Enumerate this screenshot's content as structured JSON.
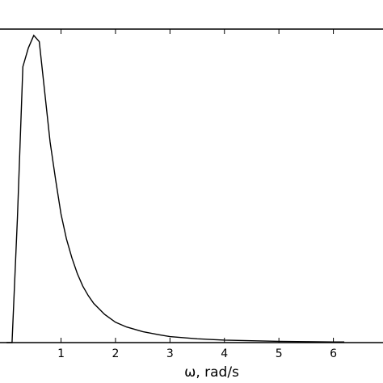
{
  "chart_data": {
    "type": "line",
    "title": "",
    "xlabel": "ω, rad/s",
    "ylabel": "",
    "xlim": [
      -0.15,
      7.0
    ],
    "ylim": [
      0,
      1.0
    ],
    "grid": false,
    "x_ticks": [
      1,
      2,
      3,
      4,
      5,
      6
    ],
    "x_tick_labels": [
      "1",
      "2",
      "3",
      "4",
      "5",
      "6"
    ],
    "series": [
      {
        "x": [
          0.0,
          0.1,
          0.2,
          0.3,
          0.4,
          0.5,
          0.6,
          0.7,
          0.8,
          0.9,
          1.0,
          1.1,
          1.2,
          1.3,
          1.4,
          1.5,
          1.6,
          1.8,
          2.0,
          2.2,
          2.5,
          2.8,
          3.0,
          3.5,
          4.0,
          4.5,
          5.0,
          5.5,
          6.0,
          6.2
        ],
        "y": [
          0.0,
          0.0,
          0.4,
          0.88,
          0.94,
          0.98,
          0.96,
          0.8,
          0.64,
          0.52,
          0.41,
          0.33,
          0.27,
          0.22,
          0.18,
          0.15,
          0.125,
          0.09,
          0.065,
          0.05,
          0.035,
          0.025,
          0.019,
          0.012,
          0.008,
          0.006,
          0.004,
          0.003,
          0.002,
          0.002
        ]
      }
    ]
  }
}
